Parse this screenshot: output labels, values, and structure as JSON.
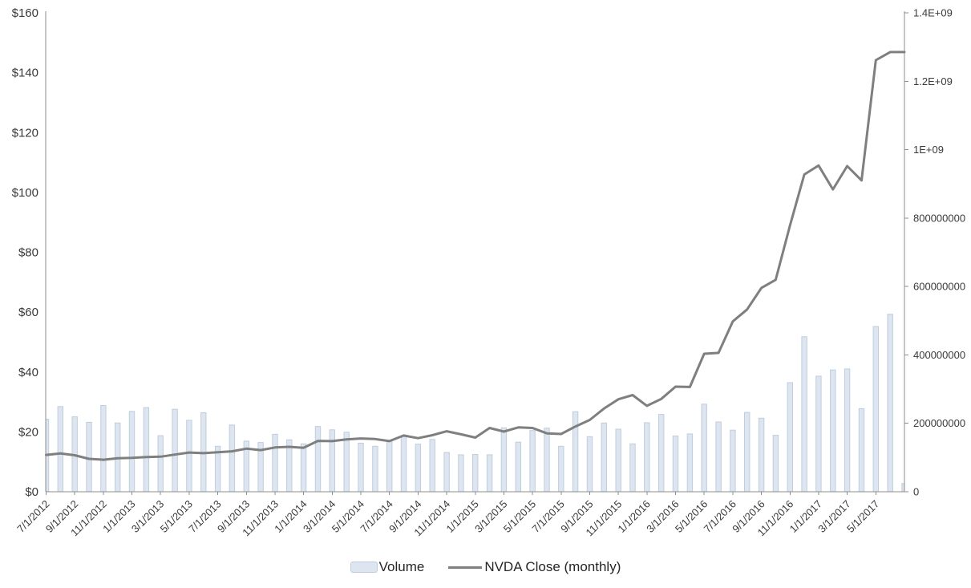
{
  "chart": {
    "legend": {
      "volume": "Volume",
      "close": "NVDA Close (monthly)"
    }
  },
  "chart_data": {
    "type": "combo-bar-line",
    "title": "",
    "grid": false,
    "legend_position": "bottom",
    "x": [
      "7/1/2012",
      "8/1/2012",
      "9/1/2012",
      "10/1/2012",
      "11/1/2012",
      "12/1/2012",
      "1/1/2013",
      "2/1/2013",
      "3/1/2013",
      "4/1/2013",
      "5/1/2013",
      "6/1/2013",
      "7/1/2013",
      "8/1/2013",
      "9/1/2013",
      "10/1/2013",
      "11/1/2013",
      "12/1/2013",
      "1/1/2014",
      "2/1/2014",
      "3/1/2014",
      "4/1/2014",
      "5/1/2014",
      "6/1/2014",
      "7/1/2014",
      "8/1/2014",
      "9/1/2014",
      "10/1/2014",
      "11/1/2014",
      "12/1/2014",
      "1/1/2015",
      "2/1/2015",
      "3/1/2015",
      "4/1/2015",
      "5/1/2015",
      "6/1/2015",
      "7/1/2015",
      "8/1/2015",
      "9/1/2015",
      "10/1/2015",
      "11/1/2015",
      "12/1/2015",
      "1/1/2016",
      "2/1/2016",
      "3/1/2016",
      "4/1/2016",
      "5/1/2016",
      "6/1/2016",
      "7/1/2016",
      "8/1/2016",
      "9/1/2016",
      "10/1/2016",
      "11/1/2016",
      "12/1/2016",
      "1/1/2017",
      "2/1/2017",
      "3/1/2017",
      "4/1/2017",
      "5/1/2017",
      "6/1/2017",
      "7/1/2017"
    ],
    "x_axis_tick_labels": [
      "7/1/2012",
      "9/1/2012",
      "11/1/2012",
      "1/1/2013",
      "3/1/2013",
      "5/1/2013",
      "7/1/2013",
      "9/1/2013",
      "11/1/2013",
      "1/1/2014",
      "3/1/2014",
      "5/1/2014",
      "7/1/2014",
      "9/1/2014",
      "11/1/2014",
      "1/1/2015",
      "3/1/2015",
      "5/1/2015",
      "7/1/2015",
      "9/1/2015",
      "11/1/2015",
      "1/1/2016",
      "3/1/2016",
      "5/1/2016",
      "7/1/2016",
      "9/1/2016",
      "11/1/2016",
      "1/1/2017",
      "3/1/2017",
      "5/1/2017"
    ],
    "series": [
      {
        "name": "Volume",
        "type": "bar",
        "y_axis": "right",
        "values": [
          212000000,
          249000000,
          219000000,
          203000000,
          252000000,
          201000000,
          235000000,
          246000000,
          164000000,
          241000000,
          209000000,
          231000000,
          133000000,
          195000000,
          148000000,
          144000000,
          168000000,
          152000000,
          140000000,
          191000000,
          181000000,
          174000000,
          142000000,
          133000000,
          147000000,
          163000000,
          139000000,
          153000000,
          115000000,
          108000000,
          109000000,
          108000000,
          187000000,
          145000000,
          179000000,
          186000000,
          133000000,
          234000000,
          161000000,
          201000000,
          183000000,
          140000000,
          202000000,
          226000000,
          163000000,
          169000000,
          256000000,
          204000000,
          180000000,
          232000000,
          215000000,
          165000000,
          319000000,
          453000000,
          338000000,
          356000000,
          359000000,
          243000000,
          483000000,
          519000000,
          24000000
        ]
      },
      {
        "name": "NVDA Close (monthly)",
        "type": "line",
        "y_axis": "left",
        "values": [
          12.3,
          12.8,
          12.2,
          11.0,
          10.7,
          11.2,
          11.3,
          11.6,
          11.7,
          12.4,
          13.1,
          12.9,
          13.2,
          13.5,
          14.4,
          13.9,
          14.8,
          15.0,
          14.7,
          17.0,
          16.9,
          17.5,
          17.8,
          17.6,
          16.9,
          18.8,
          17.9,
          18.9,
          20.2,
          19.2,
          18.1,
          21.3,
          20.1,
          21.5,
          21.3,
          19.5,
          19.3,
          21.8,
          24.0,
          27.8,
          30.9,
          32.3,
          28.7,
          31.0,
          35.1,
          35.0,
          46.1,
          46.4,
          56.9,
          60.9,
          68.1,
          70.8,
          89.0,
          106.0,
          109.0,
          101.0,
          108.8,
          104.0,
          144.2,
          146.9,
          146.9
        ]
      }
    ],
    "left_axis": {
      "min": 0,
      "max": 160,
      "step": 20,
      "tick_labels": [
        "$0",
        "$20",
        "$40",
        "$60",
        "$80",
        "$100",
        "$120",
        "$140",
        "$160"
      ]
    },
    "right_axis": {
      "min": 0,
      "max": 1400000000,
      "step": 200000000,
      "tick_labels": [
        "0",
        "200000000",
        "400000000",
        "600000000",
        "800000000",
        "1E+09",
        "1.2E+09",
        "1.4E+09"
      ]
    },
    "colors": {
      "bar_fill": "#dde5f0",
      "bar_border": "#c0cddd",
      "line": "#7f7f7f",
      "axis": "#8c8c8c",
      "text": "#3a3a3a"
    }
  }
}
